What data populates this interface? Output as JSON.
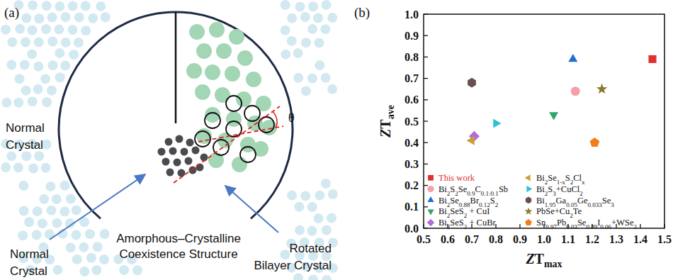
{
  "diagram": {
    "panel_label": "(a)",
    "labels": {
      "left": [
        "Normal",
        "Crystal"
      ],
      "bottom_left": [
        "Normal",
        "Crystal"
      ],
      "center": [
        "Amorphous–Crystalline",
        "Coexistence Structure"
      ],
      "right": [
        "Rotated",
        "Bilayer Crystal"
      ],
      "angle": "θ"
    }
  },
  "chart_data": {
    "type": "scatter",
    "title": "(b)",
    "xlabel": "ZTmax",
    "ylabel": "ZTave",
    "xlim": [
      0.5,
      1.5
    ],
    "xticks": [
      0.5,
      0.6,
      0.7,
      0.8,
      0.9,
      {
        "value": 1.0,
        "label": "1.0"
      },
      1.1,
      1.2,
      1.3,
      1.4,
      1.5
    ],
    "ylim": [
      0,
      1.0
    ],
    "yticks": [
      {
        "value": 0,
        "label": "0.0"
      },
      0.1,
      0.2,
      0.3,
      0.4,
      0.5,
      0.6,
      0.7,
      0.8,
      0.9,
      {
        "value": 1.0,
        "label": "1.0"
      }
    ],
    "legend": "lower left",
    "series": [
      {
        "name": "This work",
        "color": "#e0312f",
        "marker": "square",
        "x": [
          1.45
        ],
        "values": [
          0.79
        ]
      },
      {
        "name": "Bi2S2Se0.9C0.1:0.1Sb",
        "color": "#f2a0aa",
        "marker": "circle",
        "x": [
          1.13
        ],
        "values": [
          0.64
        ]
      },
      {
        "name": "Bi2Se0.88Br0.12S2",
        "color": "#1f6fd0",
        "marker": "triangle-up",
        "x": [
          1.12
        ],
        "values": [
          0.79
        ]
      },
      {
        "name": "Bi2SeS2 + CuI",
        "color": "#2ea36b",
        "marker": "triangle-down",
        "x": [
          1.04
        ],
        "values": [
          0.53
        ]
      },
      {
        "name": "Bi2SeS2 + CuBr",
        "color": "#b36cd9",
        "marker": "diamond",
        "x": [
          0.71
        ],
        "values": [
          0.43
        ]
      },
      {
        "name": "Bi2Se1-xS2Clx",
        "color": "#c9a232",
        "marker": "triangle-left",
        "x": [
          0.7
        ],
        "values": [
          0.41
        ]
      },
      {
        "name": "Bi2S3+CuCl2",
        "color": "#2cc3d4",
        "marker": "triangle-right",
        "x": [
          0.8
        ],
        "values": [
          0.49
        ]
      },
      {
        "name": "Bi1.95Ga0.05Ge0.033Se3",
        "color": "#6b4f50",
        "marker": "hexagon",
        "x": [
          0.7
        ],
        "values": [
          0.68
        ]
      },
      {
        "name": "PbSe+Cu2Te",
        "color": "#8c7a2a",
        "marker": "star",
        "x": [
          1.24
        ],
        "values": [
          0.65
        ]
      },
      {
        "name": "Sn0.97Pb0.03Se0.89I0.06+WSe2",
        "color": "#f27d1a",
        "marker": "pentagon",
        "x": [
          1.21
        ],
        "values": [
          0.4
        ]
      }
    ]
  }
}
